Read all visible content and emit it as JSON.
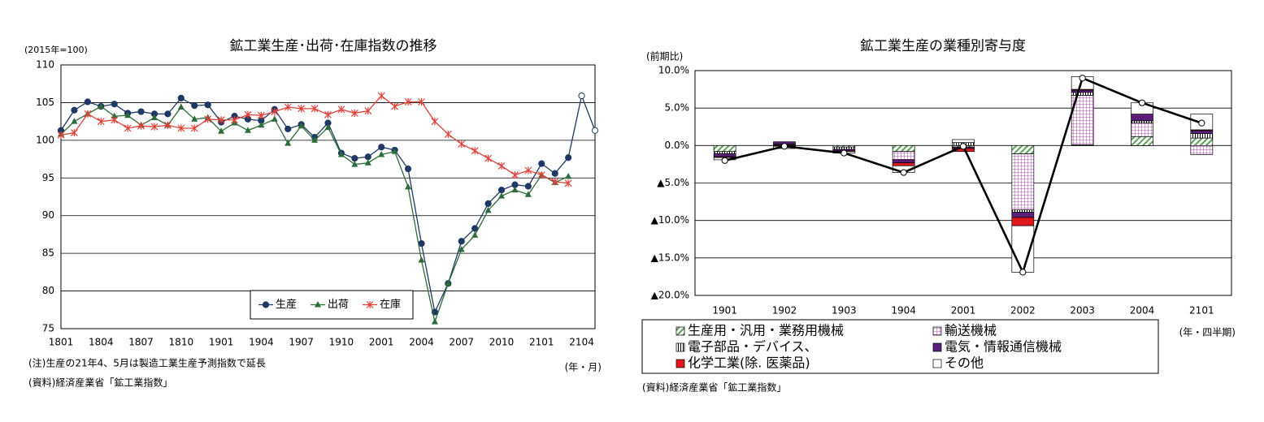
{
  "chart_data": [
    {
      "type": "line",
      "title": "鉱工業生産･出荷･在庫指数の推移",
      "y_unit_label": "(2015年=100)",
      "x_unit_label": "(年・月)",
      "notes": [
        "(注)生産の21年4、5月は製造工業生産予測指数で延長",
        "(資料)経済産業省「鉱工業指数」"
      ],
      "categories": [
        "1801",
        null,
        null,
        "1804",
        null,
        null,
        "1807",
        null,
        null,
        "1810",
        null,
        null,
        "1901",
        null,
        null,
        "1904",
        null,
        null,
        "1907",
        null,
        null,
        "1910",
        null,
        null,
        "2001",
        null,
        null,
        "2004",
        null,
        null,
        "2007",
        null,
        null,
        "2010",
        null,
        null,
        "2101",
        null,
        null,
        "2104",
        null
      ],
      "ylim": [
        75,
        110
      ],
      "yticks": [
        75,
        80,
        85,
        90,
        95,
        100,
        105,
        110
      ],
      "grid": true,
      "legend": "bottom",
      "series": [
        {
          "name": "生産",
          "color": "#1f3864",
          "marker": "circle",
          "hollow_from": 39,
          "values": [
            101.3,
            104.0,
            105.1,
            104.5,
            104.8,
            103.6,
            103.8,
            103.5,
            103.5,
            105.6,
            104.6,
            104.7,
            102.4,
            103.2,
            102.8,
            102.6,
            104.1,
            101.5,
            102.1,
            100.4,
            102.3,
            98.3,
            97.6,
            97.8,
            99.1,
            98.7,
            96.2,
            86.3,
            77.2,
            81.0,
            86.6,
            88.3,
            91.6,
            93.4,
            94.1,
            93.9,
            96.9,
            95.6,
            97.7,
            105.9,
            101.3
          ]
        },
        {
          "name": "出荷",
          "color": "#2e6b3a",
          "marker": "triangle",
          "values": [
            100.8,
            102.5,
            103.5,
            104.5,
            103.2,
            103.3,
            102.0,
            103.0,
            102.0,
            104.4,
            102.8,
            103.0,
            101.2,
            102.3,
            101.3,
            102.0,
            102.8,
            99.6,
            101.9,
            100.0,
            101.7,
            98.1,
            96.8,
            97.0,
            98.1,
            98.5,
            93.8,
            84.1,
            75.9,
            81.0,
            85.5,
            87.4,
            90.7,
            92.6,
            93.4,
            92.8,
            95.4,
            94.4,
            95.2,
            null,
            null
          ]
        },
        {
          "name": "在庫",
          "color": "#e2403a",
          "marker": "star",
          "values": [
            100.7,
            101.0,
            103.5,
            102.5,
            102.7,
            101.6,
            101.9,
            101.8,
            102.0,
            101.6,
            101.6,
            102.8,
            102.7,
            102.7,
            103.4,
            103.3,
            103.8,
            104.4,
            104.2,
            104.2,
            103.4,
            104.1,
            103.6,
            103.9,
            105.9,
            104.5,
            105.1,
            105.1,
            102.5,
            100.8,
            99.5,
            98.6,
            97.6,
            96.6,
            95.4,
            96.0,
            95.4,
            94.5,
            94.3,
            null,
            null
          ]
        }
      ]
    },
    {
      "type": "bar",
      "stacked": true,
      "title": "鉱工業生産の業種別寄与度",
      "y_unit_label": "(前期比)",
      "x_unit_label": "(年・四半期)",
      "notes": [
        "(資料)経済産業省「鉱工業指数」"
      ],
      "categories": [
        "1901",
        "1902",
        "1903",
        "1904",
        "2001",
        "2002",
        "2003",
        "2004",
        "2101"
      ],
      "ylim": [
        -20,
        10
      ],
      "yticks": [
        {
          "value": -20,
          "label": "▲20.0%"
        },
        {
          "value": -15,
          "label": "▲15.0%"
        },
        {
          "value": -10,
          "label": "▲10.0%"
        },
        {
          "value": -5,
          "label": "▲5.0%"
        },
        {
          "value": 0,
          "label": "0.0%"
        },
        {
          "value": 5,
          "label": "5.0%"
        },
        {
          "value": 10,
          "label": "10.0%"
        }
      ],
      "grid": true,
      "series": [
        {
          "name": "生産用・汎用・業務用機械",
          "color": "#5aa05a",
          "pattern": "diagonal",
          "values": [
            -0.8,
            0.1,
            -0.2,
            -0.8,
            -0.2,
            -1.1,
            0.1,
            1.2,
            1.0
          ]
        },
        {
          "name": "輸送機械",
          "color": "#b04ab0",
          "pattern": "grid",
          "values": [
            0,
            0,
            0,
            -1.1,
            0,
            -7.5,
            6.6,
            1.8,
            -1.2
          ]
        },
        {
          "name": "電子部品・デバイス、",
          "color": "#000000",
          "pattern": "vertical",
          "values": [
            -0.3,
            0.1,
            -0.3,
            0,
            0.4,
            -0.3,
            0.4,
            0.3,
            0.6
          ]
        },
        {
          "name": "電気・情報通信機械",
          "color": "#5b1f7a",
          "pattern": "solid",
          "values": [
            -0.4,
            0.3,
            -0.2,
            -0.4,
            -0.2,
            -0.7,
            0.3,
            0.9,
            0.4
          ]
        },
        {
          "name": "化学工業(除. 医薬品)",
          "color": "#e0181e",
          "pattern": "solid",
          "values": [
            -0.1,
            -0.1,
            -0.1,
            -0.4,
            -0.4,
            -1.1,
            0.1,
            0,
            0.1
          ]
        },
        {
          "name": "その他",
          "color": "#ffffff",
          "pattern": "solid",
          "values": [
            -0.3,
            -0.3,
            -0.2,
            -0.9,
            0.4,
            -6.2,
            1.7,
            1.5,
            2.1
          ]
        }
      ],
      "line": {
        "color": "#000000",
        "values": [
          -2.0,
          -0.1,
          -1.0,
          -3.6,
          -0.1,
          -16.9,
          9.0,
          5.7,
          3.0
        ]
      }
    }
  ]
}
